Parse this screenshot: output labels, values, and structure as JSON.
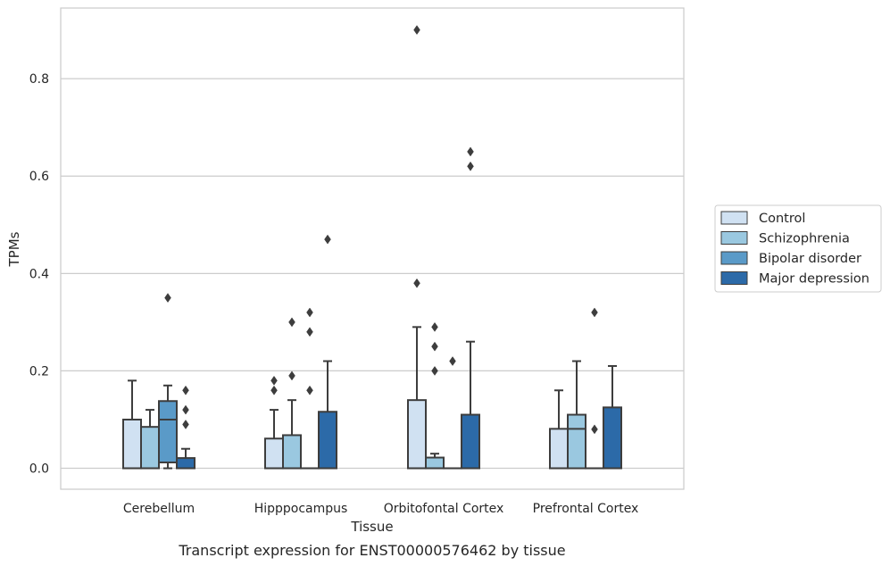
{
  "chart_data": {
    "type": "box",
    "xlabel": "Tissue",
    "ylabel": "TPMs",
    "caption": "Transcript expression for ENST00000576462 by tissue",
    "categories": [
      "Cerebellum",
      "Hipppocampus",
      "Orbitofontal Cortex",
      "Prefrontal Cortex"
    ],
    "ylim": [
      -0.043,
      0.945
    ],
    "yticks": [
      0.0,
      0.2,
      0.4,
      0.6,
      0.8
    ],
    "ytick_labels": [
      "0.0",
      "0.2",
      "0.4",
      "0.6",
      "0.8"
    ],
    "grid": "horizontal",
    "legend_placement": "right",
    "series": [
      {
        "name": "Control",
        "color": "#d0e1f2",
        "boxes": [
          {
            "q1": 0.0,
            "median": 0.0,
            "q3": 0.1,
            "whisker_low": 0.0,
            "whisker_high": 0.18,
            "outliers": []
          },
          {
            "q1": 0.0,
            "median": 0.0,
            "q3": 0.061,
            "whisker_low": 0.0,
            "whisker_high": 0.12,
            "outliers": [
              0.16,
              0.18
            ]
          },
          {
            "q1": 0.0,
            "median": 0.0,
            "q3": 0.14,
            "whisker_low": 0.0,
            "whisker_high": 0.29,
            "outliers": [
              0.38,
              0.9
            ]
          },
          {
            "q1": 0.0,
            "median": 0.0,
            "q3": 0.081,
            "whisker_low": 0.0,
            "whisker_high": 0.16,
            "outliers": []
          }
        ]
      },
      {
        "name": "Schizophrenia",
        "color": "#9ac8e0",
        "boxes": [
          {
            "q1": 0.0,
            "median": 0.0,
            "q3": 0.085,
            "whisker_low": 0.0,
            "whisker_high": 0.12,
            "outliers": []
          },
          {
            "q1": 0.0,
            "median": 0.0,
            "q3": 0.068,
            "whisker_low": 0.0,
            "whisker_high": 0.14,
            "outliers": [
              0.19,
              0.3
            ]
          },
          {
            "q1": 0.0,
            "median": 0.0,
            "q3": 0.022,
            "whisker_low": 0.0,
            "whisker_high": 0.03,
            "outliers": [
              0.2,
              0.25,
              0.29
            ]
          },
          {
            "q1": 0.0,
            "median": 0.081,
            "q3": 0.11,
            "whisker_low": 0.0,
            "whisker_high": 0.22,
            "outliers": []
          }
        ]
      },
      {
        "name": "Bipolar disorder",
        "color": "#5a9ac8",
        "boxes": [
          {
            "q1": 0.012,
            "median": 0.1,
            "q3": 0.138,
            "whisker_low": 0.0,
            "whisker_high": 0.17,
            "outliers": [
              0.35
            ]
          },
          {
            "q1": 0.0,
            "median": 0.0,
            "q3": 0.0,
            "whisker_low": 0.0,
            "whisker_high": 0.0,
            "outliers": [
              0.16,
              0.28,
              0.32
            ]
          },
          {
            "q1": 0.0,
            "median": 0.0,
            "q3": 0.0,
            "whisker_low": 0.0,
            "whisker_high": 0.0,
            "outliers": [
              0.22
            ]
          },
          {
            "q1": 0.0,
            "median": 0.0,
            "q3": 0.0,
            "whisker_low": 0.0,
            "whisker_high": 0.0,
            "outliers": [
              0.08,
              0.32
            ]
          }
        ]
      },
      {
        "name": "Major depression",
        "color": "#2c6aa8",
        "boxes": [
          {
            "q1": 0.0,
            "median": 0.0,
            "q3": 0.021,
            "whisker_low": 0.0,
            "whisker_high": 0.04,
            "outliers": [
              0.09,
              0.12,
              0.16
            ]
          },
          {
            "q1": 0.0,
            "median": 0.0,
            "q3": 0.116,
            "whisker_low": 0.0,
            "whisker_high": 0.22,
            "outliers": [
              0.47
            ]
          },
          {
            "q1": 0.0,
            "median": 0.0,
            "q3": 0.11,
            "whisker_low": 0.0,
            "whisker_high": 0.26,
            "outliers": [
              0.62,
              0.65
            ]
          },
          {
            "q1": 0.0,
            "median": 0.0,
            "q3": 0.125,
            "whisker_low": 0.0,
            "whisker_high": 0.21,
            "outliers": []
          }
        ]
      }
    ]
  }
}
